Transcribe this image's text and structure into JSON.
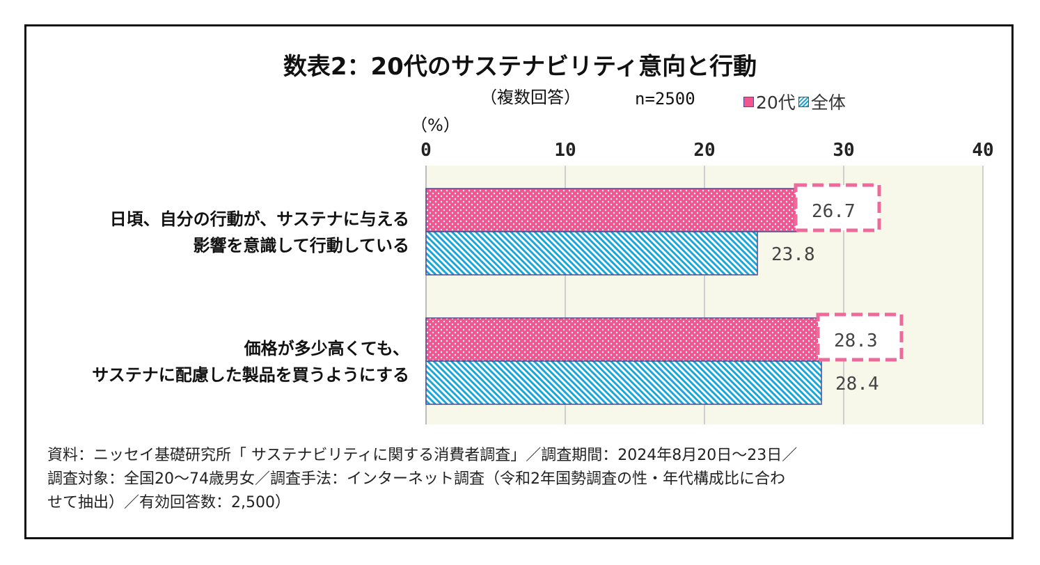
{
  "title": "数表2：20代のサステナビリティ意向と行動",
  "subtitle": "（複数回答）",
  "sample_size": "n=2500",
  "unit_label": "（%）",
  "legend": [
    {
      "label": "20代",
      "color": "#f0568f"
    },
    {
      "label": "全体",
      "color": "#1aa6d6"
    }
  ],
  "source_lines": [
    "資料：ニッセイ基礎研究所「 サステナビリティに関する消費者調査」／調査期間：2024年8月20日～23日／",
    "調査対象：全国20～74歳男女／調査手法：インターネット調査（令和2年国勢調査の性・年代構成比に合わ",
    "せて抽出）／有効回答数：2,500）"
  ],
  "chart_data": {
    "type": "bar",
    "orientation": "horizontal",
    "title": "数表2：20代のサステナビリティ意向と行動",
    "xlim": [
      0,
      40
    ],
    "xticks": [
      0,
      10,
      20,
      30,
      40
    ],
    "grid": true,
    "legend_position": "top-right",
    "categories": [
      [
        "日頃、自分の行動が、サステナに与える",
        "影響を意識して行動している"
      ],
      [
        "価格が多少高くても、",
        "サステナに配慮した製品を買うようにする"
      ]
    ],
    "series": [
      {
        "name": "20代",
        "values": [
          26.7,
          28.3
        ],
        "labels": [
          "26.7",
          "28.3"
        ],
        "pattern": "dots",
        "color": "#f0568f",
        "highlight": true
      },
      {
        "name": "全体",
        "values": [
          23.8,
          28.4
        ],
        "labels": [
          "23.8",
          "28.4"
        ],
        "pattern": "diagonal",
        "color": "#1aa6d6",
        "highlight": false
      }
    ]
  }
}
